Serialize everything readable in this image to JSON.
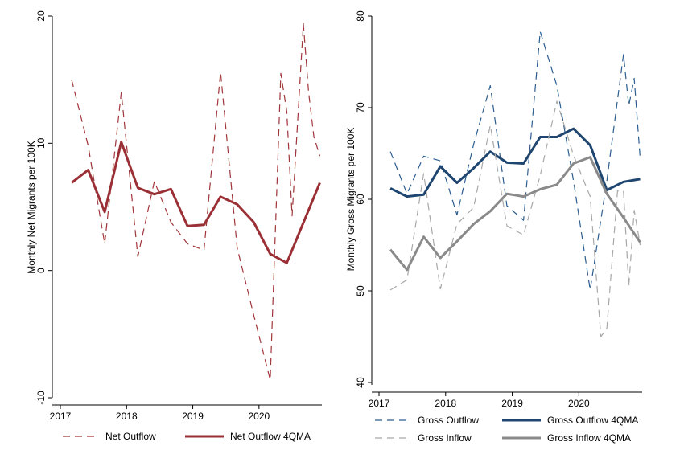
{
  "chart_data": [
    {
      "type": "line",
      "title": "",
      "xlabel": "",
      "ylabel": "Monthly Net Migrants per 100K",
      "xlim": [
        2017,
        2020.95
      ],
      "ylim": [
        -10,
        20
      ],
      "xticks": [
        "2017",
        "2018",
        "2019",
        "2020"
      ],
      "yticks": [
        "-10",
        "0",
        "10",
        "20"
      ],
      "grid": false,
      "legend_position": "bottom",
      "series": [
        {
          "name": "Net Outflow",
          "color": "#a0353a",
          "style": "dashed",
          "x": [
            2017.17,
            2017.42,
            2017.67,
            2017.92,
            2018.17,
            2018.42,
            2018.67,
            2018.92,
            2019.17,
            2019.42,
            2019.67,
            2019.92,
            2020.17,
            2020.33,
            2020.42,
            2020.5,
            2020.67,
            2020.75,
            2020.83,
            2020.92
          ],
          "values": [
            15.0,
            9.8,
            2.1,
            14.0,
            1.1,
            7.0,
            3.8,
            2.1,
            1.6,
            15.6,
            1.8,
            -3.5,
            -8.6,
            15.5,
            12.5,
            4.3,
            19.4,
            14.0,
            10.5,
            9.0
          ]
        },
        {
          "name": "Net Outflow 4QMA",
          "color": "#9a2f35",
          "style": "solid",
          "x": [
            2017.17,
            2017.42,
            2017.67,
            2017.92,
            2018.17,
            2018.42,
            2018.67,
            2018.92,
            2019.17,
            2019.42,
            2019.67,
            2019.92,
            2020.17,
            2020.42,
            2020.92
          ],
          "values": [
            6.9,
            7.9,
            4.6,
            10.1,
            6.5,
            6.0,
            6.4,
            3.5,
            3.6,
            5.8,
            5.2,
            3.8,
            1.3,
            0.6,
            6.9
          ]
        }
      ]
    },
    {
      "type": "line",
      "title": "",
      "xlabel": "",
      "ylabel": "Monthly Gross Migrants per 100K",
      "xlim": [
        2017,
        2020.95
      ],
      "ylim": [
        40,
        80
      ],
      "xticks": [
        "2017",
        "2018",
        "2019",
        "2020"
      ],
      "yticks": [
        "40",
        "50",
        "60",
        "70",
        "80"
      ],
      "grid": false,
      "legend_position": "bottom",
      "series": [
        {
          "name": "Gross Outflow",
          "color": "#2c5d8f",
          "style": "dashed",
          "x": [
            2017.17,
            2017.42,
            2017.67,
            2017.92,
            2018.17,
            2018.42,
            2018.67,
            2018.92,
            2019.17,
            2019.42,
            2019.67,
            2019.92,
            2020.17,
            2020.42,
            2020.67,
            2020.75,
            2020.83,
            2020.92
          ],
          "values": [
            65.2,
            60.6,
            64.7,
            64.2,
            58.3,
            66.0,
            72.4,
            59.3,
            57.7,
            78.3,
            72.4,
            62.0,
            50.1,
            62.0,
            75.8,
            70.2,
            73.2,
            64.5
          ]
        },
        {
          "name": "Gross Outflow 4QMA",
          "color": "#1f4670",
          "style": "solid",
          "x": [
            2017.17,
            2017.42,
            2017.67,
            2017.92,
            2018.17,
            2018.42,
            2018.67,
            2018.92,
            2019.17,
            2019.42,
            2019.67,
            2019.92,
            2020.17,
            2020.42,
            2020.67,
            2020.92
          ],
          "values": [
            61.2,
            60.3,
            60.5,
            63.6,
            61.8,
            63.4,
            65.2,
            64.0,
            63.9,
            66.8,
            66.8,
            67.7,
            65.9,
            61.0,
            61.9,
            62.2
          ]
        },
        {
          "name": "Gross Inflow",
          "color": "#a8a8a8",
          "style": "dashed",
          "x": [
            2017.17,
            2017.42,
            2017.67,
            2017.92,
            2018.17,
            2018.42,
            2018.67,
            2018.92,
            2019.17,
            2019.42,
            2019.67,
            2019.92,
            2020.17,
            2020.33,
            2020.42,
            2020.58,
            2020.67,
            2020.75,
            2020.83,
            2020.92
          ],
          "values": [
            50.1,
            51.2,
            62.8,
            50.2,
            57.3,
            59.1,
            68.1,
            57.1,
            56.1,
            62.6,
            70.7,
            64.8,
            60.3,
            45.0,
            45.9,
            60.9,
            60.9,
            50.5,
            58.8,
            55.0
          ]
        },
        {
          "name": "Gross Inflow 4QMA",
          "color": "#8a8a8a",
          "style": "solid",
          "x": [
            2017.17,
            2017.42,
            2017.67,
            2017.92,
            2018.17,
            2018.42,
            2018.67,
            2018.92,
            2019.17,
            2019.42,
            2019.67,
            2019.92,
            2020.17,
            2020.42,
            2020.67,
            2020.92
          ],
          "values": [
            54.5,
            52.3,
            55.9,
            53.6,
            55.4,
            57.3,
            58.7,
            60.6,
            60.3,
            61.1,
            61.6,
            63.9,
            64.6,
            60.6,
            58.0,
            55.3
          ]
        }
      ]
    }
  ],
  "legends": {
    "left": [
      {
        "label": "Net Outflow",
        "color": "#a0353a",
        "style": "dashed"
      },
      {
        "label": "Net Outflow 4QMA",
        "color": "#9a2f35",
        "style": "solid"
      }
    ],
    "right": [
      {
        "label": "Gross Outflow",
        "color": "#2c5d8f",
        "style": "dashed"
      },
      {
        "label": "Gross Outflow 4QMA",
        "color": "#1f4670",
        "style": "solid"
      },
      {
        "label": "Gross Inflow",
        "color": "#a8a8a8",
        "style": "dashed"
      },
      {
        "label": "Gross Inflow 4QMA",
        "color": "#8a8a8a",
        "style": "solid"
      }
    ]
  }
}
